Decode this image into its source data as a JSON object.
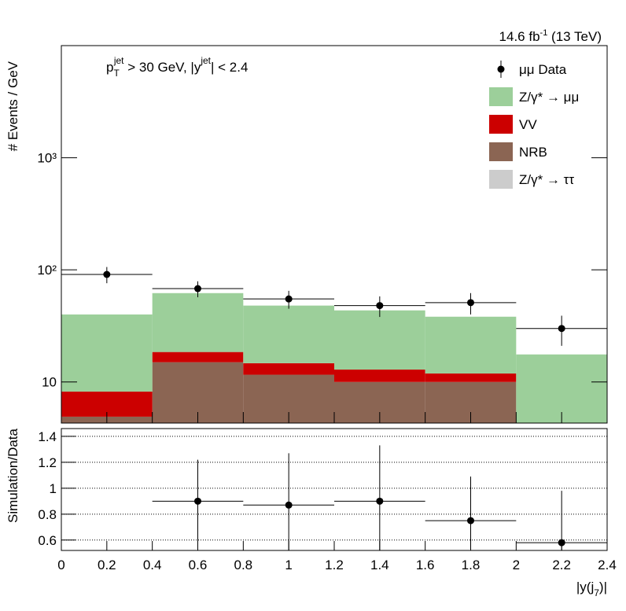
{
  "chart_data": [
    {
      "type": "stacked_histogram",
      "luminosity": [
        "14.6 fb",
        "-1",
        " (13 TeV)"
      ],
      "cut_label": [
        "p",
        "T",
        "jet",
        " > 30 GeV,  |y",
        "jet",
        "| < 2.4"
      ],
      "y_label": "# Events / GeV",
      "bins": [
        0,
        0.4,
        0.8,
        1.2,
        1.6,
        2,
        2.4
      ],
      "xlim": [
        0,
        2.4
      ],
      "log_y": true,
      "ylim": [
        4.3,
        10000
      ],
      "yticks": [
        {
          "value": 10,
          "label": "10"
        },
        {
          "value": 100,
          "label": "10²"
        },
        {
          "value": 1000,
          "label": "10³"
        }
      ],
      "series": [
        {
          "name": "Z/γ* → ττ",
          "color": "#cccccc",
          "values": [
            0,
            0,
            0,
            0,
            0,
            0
          ]
        },
        {
          "name": "NRB",
          "color": "#8b6553",
          "values": [
            4.9,
            15,
            11.6,
            10,
            10,
            0
          ]
        },
        {
          "name": "VV",
          "color": "#cc0000",
          "values": [
            3.3,
            3.5,
            3.1,
            2.9,
            1.9,
            0
          ]
        },
        {
          "name": "Z/γ* → μμ",
          "color": "#9ccf9a",
          "values": [
            31.8,
            43.5,
            33.3,
            30.6,
            26.3,
            17.6
          ]
        }
      ],
      "data": {
        "name": "μμ Data",
        "color": "#000000",
        "x": [
          0.2,
          0.6,
          1,
          1.4,
          1.8,
          2.2
        ],
        "values": [
          91,
          68,
          55,
          48,
          51,
          30
        ],
        "errors": [
          15,
          11,
          10,
          10,
          11,
          9
        ]
      }
    },
    {
      "type": "ratio",
      "y_label": "Simulation/Data",
      "x_label": [
        "|y(j",
        "7",
        ")|"
      ],
      "bins": [
        0,
        0.4,
        0.8,
        1.2,
        1.6,
        2,
        2.4
      ],
      "xlim": [
        0,
        2.4
      ],
      "xticks": [
        0,
        0.2,
        0.4,
        0.6,
        0.8,
        1,
        1.2,
        1.4,
        1.6,
        1.8,
        2,
        2.2,
        2.4
      ],
      "ylim": [
        0.52,
        1.46
      ],
      "yticks": [
        0.6,
        0.8,
        1,
        1.2,
        1.4
      ],
      "grid": true,
      "color": "#000000",
      "x": [
        0.2,
        0.6,
        1,
        1.4,
        1.8,
        2.2
      ],
      "values": [
        null,
        0.9,
        0.87,
        0.9,
        0.75,
        0.58
      ],
      "errors": [
        null,
        0.32,
        0.4,
        0.43,
        0.34,
        0.4
      ]
    }
  ]
}
